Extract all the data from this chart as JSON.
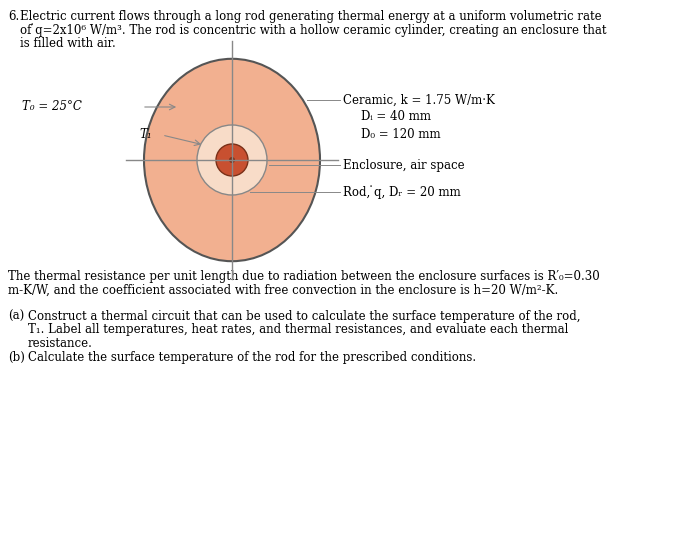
{
  "problem_number": "6.",
  "problem_text_line1": "Electric current flows through a long rod generating thermal energy at a uniform volumetric rate",
  "problem_text_line2": "of ̇q=2x10⁶ W/m³. The rod is concentric with a hollow ceramic cylinder, creating an enclosure that",
  "problem_text_line3": "is filled with air.",
  "resistance_text_line1": "The thermal resistance per unit length due to radiation between the enclosure surfaces is R′₀=0.30",
  "resistance_text_line2": "m-K/W, and the coefficient associated with free convection in the enclosure is h=20 W/m²-K.",
  "part_a_label": "(a)",
  "part_a_text": "Construct a thermal circuit that can be used to calculate the surface temperature of the rod,",
  "part_a_text2": "T₁. Label all temperatures, heat rates, and thermal resistances, and evaluate each thermal",
  "part_a_text3": "resistance.",
  "part_b_label": "(b)",
  "part_b_text": "Calculate the surface temperature of the rod for the prescribed conditions.",
  "label_To": "T₀ = 25°C",
  "label_Tr": "T₁",
  "label_ceramic": "Ceramic, k = 1.75 W/m·K",
  "label_Di": "Dᵢ = 40 mm",
  "label_Do": "D₀ = 120 mm",
  "label_enclosure": "Enclosure, air space",
  "label_rod": "Rod, ̇q, Dᵣ = 20 mm",
  "bg_color": "#ffffff",
  "outer_fill_color": "#f2b090",
  "outer_edge_color": "#555555",
  "inner_circle_fill": "#f8dcc8",
  "inner_circle_edge": "#888888",
  "rod_fill_color": "#c85030",
  "rod_edge_color": "#7a3018",
  "rod_center_color": "#7a3018",
  "crosshair_color": "#888888",
  "text_color": "#000000",
  "anno_line_color": "#888888"
}
